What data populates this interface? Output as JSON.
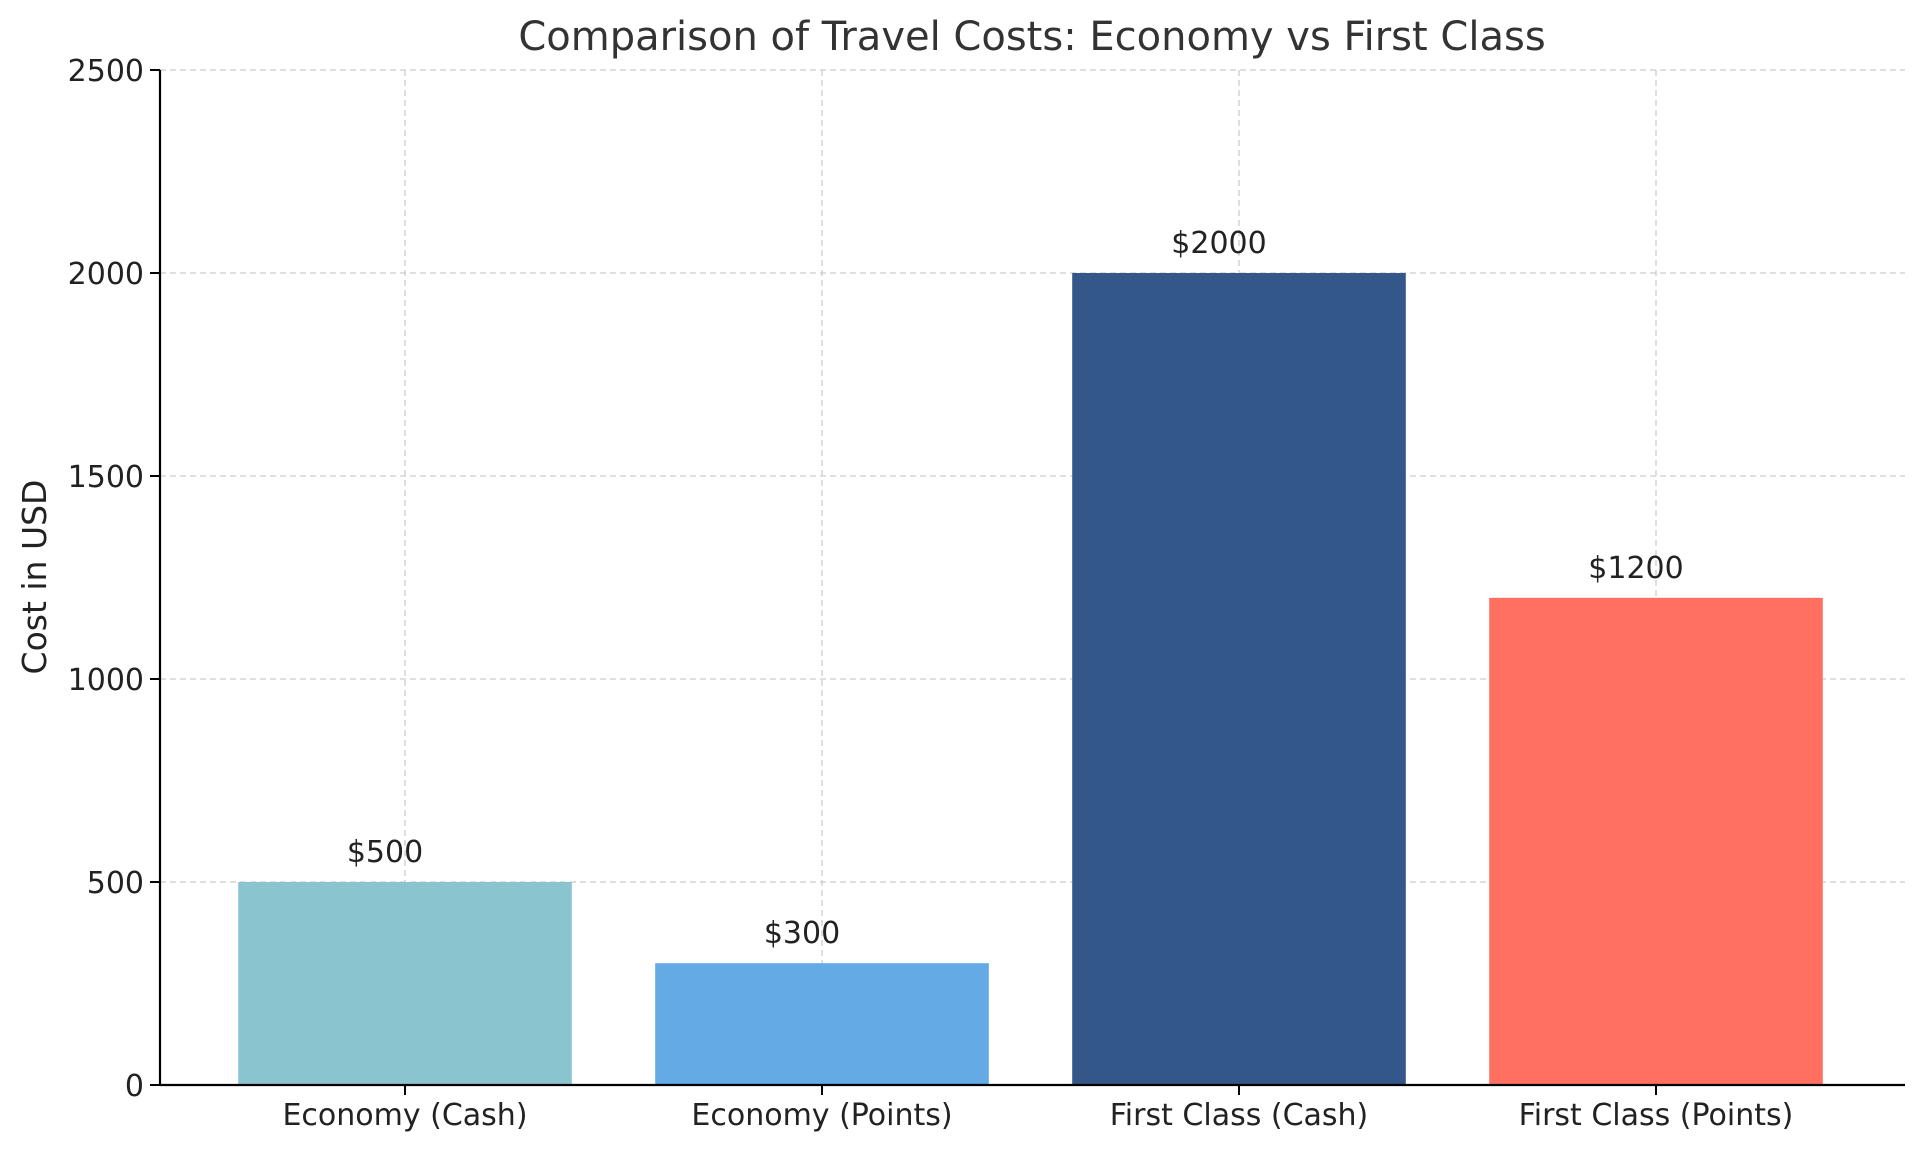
{
  "chart_data": {
    "type": "bar",
    "title": "Comparison of Travel Costs: Economy vs First Class",
    "xlabel": "",
    "ylabel": "Cost in USD",
    "categories": [
      "Economy (Cash)",
      "Economy (Points)",
      "First Class (Cash)",
      "First Class (Points)"
    ],
    "values": [
      500,
      300,
      2000,
      1200
    ],
    "value_labels": [
      "$500",
      "$300",
      "$2000",
      "$1200"
    ],
    "colors": [
      "#89c4cf",
      "#64aae4",
      "#345789",
      "#ff7061"
    ],
    "ylim": [
      0,
      2500
    ],
    "yticks": [
      0,
      500,
      1000,
      1500,
      2000,
      2500
    ],
    "ytick_labels": [
      "0",
      "500",
      "1000",
      "1500",
      "2000",
      "2500"
    ],
    "grid": true,
    "legend": "none"
  }
}
